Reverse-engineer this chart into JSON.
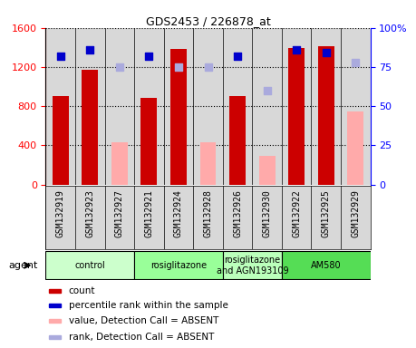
{
  "title": "GDS2453 / 226878_at",
  "samples": [
    "GSM132919",
    "GSM132923",
    "GSM132927",
    "GSM132921",
    "GSM132924",
    "GSM132928",
    "GSM132926",
    "GSM132930",
    "GSM132922",
    "GSM132925",
    "GSM132929"
  ],
  "bar_values": [
    900,
    1175,
    null,
    880,
    1380,
    null,
    900,
    null,
    1390,
    1410,
    null
  ],
  "bar_absent_values": [
    null,
    null,
    430,
    null,
    null,
    430,
    null,
    290,
    null,
    null,
    750
  ],
  "percentile_present": [
    82,
    86,
    null,
    82,
    null,
    null,
    82,
    null,
    86,
    84,
    null
  ],
  "percentile_absent": [
    null,
    null,
    75,
    null,
    75,
    75,
    null,
    60,
    null,
    null,
    78
  ],
  "bar_color": "#cc0000",
  "bar_absent_color": "#ffaaaa",
  "dot_present_color": "#0000cc",
  "dot_absent_color": "#aaaadd",
  "ylim_left": [
    0,
    1600
  ],
  "ylim_right": [
    0,
    100
  ],
  "yticks_left": [
    0,
    400,
    800,
    1200,
    1600
  ],
  "yticks_right": [
    0,
    25,
    50,
    75,
    100
  ],
  "groups": [
    {
      "label": "control",
      "start": 0,
      "end": 2,
      "color": "#ccffcc"
    },
    {
      "label": "rosiglitazone",
      "start": 3,
      "end": 5,
      "color": "#99ff99"
    },
    {
      "label": "rosiglitazone\nand AGN193109",
      "start": 6,
      "end": 7,
      "color": "#bbffbb"
    },
    {
      "label": "AM580",
      "start": 8,
      "end": 10,
      "color": "#55dd55"
    }
  ],
  "legend_items": [
    {
      "label": "count",
      "color": "#cc0000"
    },
    {
      "label": "percentile rank within the sample",
      "color": "#0000cc"
    },
    {
      "label": "value, Detection Call = ABSENT",
      "color": "#ffaaaa"
    },
    {
      "label": "rank, Detection Call = ABSENT",
      "color": "#aaaadd"
    }
  ],
  "agent_label": "agent",
  "bar_width": 0.55,
  "col_bg_color": "#d8d8d8",
  "plot_bg_color": "#ffffff"
}
